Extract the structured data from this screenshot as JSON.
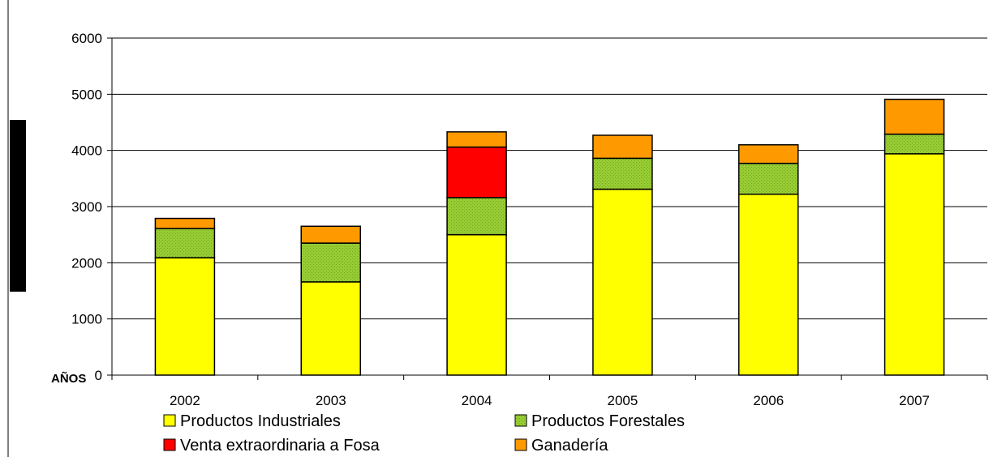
{
  "chart_data": {
    "type": "bar",
    "stacked": true,
    "title": "",
    "xlabel": "AÑOS",
    "ylabel": "",
    "categories": [
      "2002",
      "2003",
      "2004",
      "2005",
      "2006",
      "2007"
    ],
    "ylim": [
      0,
      6000
    ],
    "yticks": [
      0,
      1000,
      2000,
      3000,
      4000,
      5000,
      6000
    ],
    "grid": true,
    "legend_position": "bottom",
    "series": [
      {
        "name": "Productos Industriales",
        "color": "#ffff00",
        "values": [
          2090,
          1660,
          2500,
          3310,
          3220,
          3940
        ]
      },
      {
        "name": "Productos Forestales",
        "color": "#99cc33",
        "pattern": "dotted",
        "values": [
          520,
          690,
          660,
          550,
          550,
          350
        ]
      },
      {
        "name": "Venta extraordinaria a Fosa",
        "color": "#ff0000",
        "values": [
          0,
          0,
          900,
          0,
          0,
          0
        ]
      },
      {
        "name": "Ganadería",
        "color": "#ff9900",
        "values": [
          180,
          300,
          270,
          410,
          330,
          620
        ]
      }
    ]
  }
}
